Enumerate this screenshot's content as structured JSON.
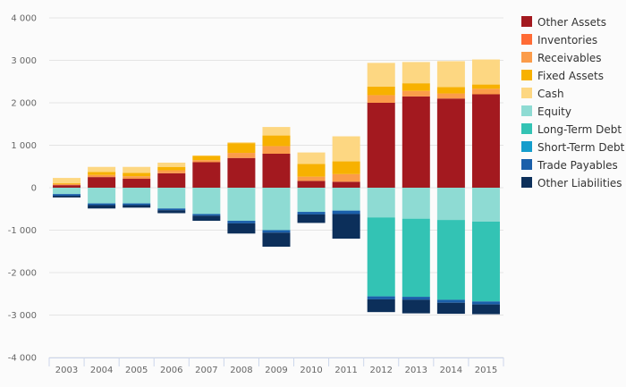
{
  "chart_data": {
    "type": "bar",
    "stacked": true,
    "categories": [
      "2003",
      "2004",
      "2005",
      "2006",
      "2007",
      "2008",
      "2009",
      "2010",
      "2011",
      "2012",
      "2013",
      "2014",
      "2015"
    ],
    "ylim": [
      -4000,
      4000
    ],
    "yticks": [
      -4000,
      -3000,
      -2000,
      -1000,
      0,
      1000,
      2000,
      3000,
      4000
    ],
    "ytick_labels": [
      "-4 000",
      "-3 000",
      "-2 000",
      "-1 000",
      "0",
      "1 000",
      "2 000",
      "3 000",
      "4 000"
    ],
    "grid": true,
    "legend_position": "right",
    "series": [
      {
        "name": "Other Assets",
        "color": "#a3191f",
        "values": [
          60,
          250,
          210,
          340,
          600,
          700,
          800,
          160,
          140,
          2000,
          2150,
          2100,
          2200
        ]
      },
      {
        "name": "Inventories",
        "color": "#ff6b35",
        "values": [
          0,
          0,
          0,
          0,
          0,
          0,
          0,
          0,
          0,
          0,
          0,
          0,
          0
        ]
      },
      {
        "name": "Receivables",
        "color": "#fb9c4a",
        "values": [
          30,
          50,
          60,
          70,
          50,
          120,
          180,
          100,
          180,
          180,
          130,
          120,
          130
        ]
      },
      {
        "name": "Fixed Assets",
        "color": "#f7b100",
        "values": [
          20,
          70,
          80,
          80,
          100,
          230,
          250,
          300,
          300,
          200,
          180,
          150,
          100
        ]
      },
      {
        "name": "Cash",
        "color": "#fdd782",
        "values": [
          120,
          120,
          140,
          100,
          10,
          20,
          200,
          270,
          590,
          560,
          500,
          610,
          590
        ]
      },
      {
        "name": "Equity",
        "color": "#8edbd3",
        "values": [
          -150,
          -370,
          -370,
          -490,
          -620,
          -780,
          -1000,
          -570,
          -540,
          -700,
          -730,
          -760,
          -800
        ]
      },
      {
        "name": "Long-Term Debt",
        "color": "#33c3b4",
        "values": [
          0,
          0,
          0,
          0,
          0,
          0,
          0,
          0,
          0,
          -1860,
          -1840,
          -1880,
          -1880
        ]
      },
      {
        "name": "Short-Term Debt",
        "color": "#149dcc",
        "values": [
          0,
          0,
          0,
          0,
          0,
          0,
          0,
          0,
          0,
          0,
          0,
          0,
          0
        ]
      },
      {
        "name": "Trade Payables",
        "color": "#1a5faa",
        "values": [
          -40,
          -40,
          -40,
          -40,
          -40,
          -60,
          -60,
          -60,
          -80,
          -70,
          -70,
          -70,
          -70
        ]
      },
      {
        "name": "Other Liabilities",
        "color": "#0c2f5a",
        "values": [
          -40,
          -80,
          -60,
          -70,
          -120,
          -240,
          -330,
          -200,
          -580,
          -300,
          -320,
          -260,
          -230
        ]
      }
    ]
  }
}
